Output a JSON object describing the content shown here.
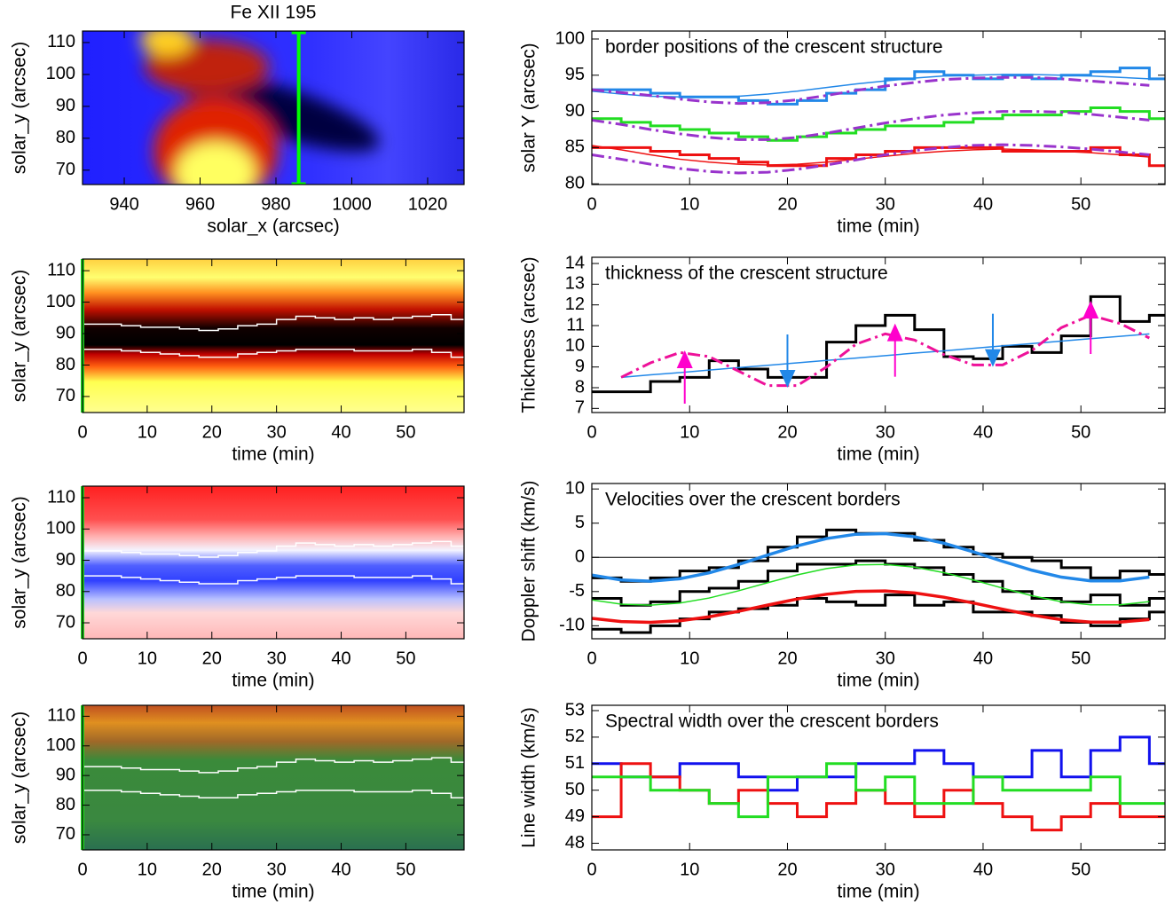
{
  "chart_data": [
    {
      "type": "heatmap",
      "title": "Fe XII 195",
      "xlabel": "solar_x (arcsec)",
      "ylabel": "solar_y (arcsec)",
      "xlim": [
        929,
        1029.6
      ],
      "ylim": [
        65.5,
        113.6
      ],
      "xticks": [
        940,
        960,
        980,
        1000,
        1020
      ],
      "yticks": [
        70,
        80,
        90,
        100,
        110
      ],
      "marker_x": 986,
      "marker_color": "#00ff00"
    },
    {
      "type": "line",
      "title": "border positions of the crescent structure",
      "xlabel": "time (min)",
      "ylabel": "solar Y (arcsec)",
      "xlim": [
        0,
        58.6
      ],
      "ylim": [
        79.9,
        101.1
      ],
      "xticks": [
        0,
        10,
        20,
        30,
        40,
        50
      ],
      "yticks": [
        80,
        85,
        90,
        95,
        100
      ],
      "x": [
        0,
        3,
        6,
        9,
        12,
        15,
        18,
        21,
        24,
        27,
        30,
        33,
        36,
        39,
        42,
        45,
        48,
        51,
        54,
        57
      ],
      "series": [
        {
          "color": "#2288e8",
          "style": "step",
          "values": [
            93,
            93,
            92.5,
            92,
            92,
            91.5,
            91,
            91.5,
            92.5,
            93,
            94.5,
            95.5,
            95,
            94.5,
            95,
            94.5,
            95,
            95.5,
            96,
            94.5
          ]
        },
        {
          "color": "#2288e8",
          "style": "line",
          "values": [
            92.8,
            92.4,
            92.1,
            92,
            92,
            92.1,
            92.4,
            92.8,
            93.3,
            93.8,
            94.2,
            94.6,
            94.9,
            95,
            95.1,
            95.1,
            95,
            94.9,
            94.7,
            94.5
          ]
        },
        {
          "color": "#9933cc",
          "style": "dashdot",
          "values": [
            93,
            92.6,
            92.2,
            91.7,
            91.3,
            91.1,
            91.2,
            91.6,
            92.2,
            92.9,
            93.5,
            94,
            94.4,
            94.6,
            94.7,
            94.7,
            94.5,
            94.2,
            93.9,
            93.6
          ]
        },
        {
          "color": "#22dd22",
          "style": "step",
          "values": [
            89,
            88.5,
            88,
            87.5,
            87,
            86.5,
            86,
            86.5,
            87,
            87.5,
            88,
            88,
            88.5,
            89,
            89.5,
            89.5,
            90,
            90.5,
            90,
            89
          ]
        },
        {
          "color": "#9933cc",
          "style": "dashdot",
          "values": [
            88.8,
            88.2,
            87.5,
            86.9,
            86.4,
            86.1,
            86.1,
            86.4,
            87,
            87.7,
            88.4,
            89,
            89.5,
            89.8,
            90,
            90,
            89.9,
            89.6,
            89.2,
            88.8
          ]
        },
        {
          "color": "#ee1111",
          "style": "step",
          "values": [
            85,
            85,
            84.5,
            84,
            83.5,
            83,
            82.5,
            82.5,
            83.5,
            84,
            84.5,
            85,
            85,
            85,
            84.5,
            84.5,
            84.5,
            85,
            84,
            82.5
          ]
        },
        {
          "color": "#ee1111",
          "style": "line",
          "values": [
            85.3,
            84.7,
            84,
            83.4,
            83,
            82.7,
            82.6,
            82.7,
            83,
            83.4,
            83.8,
            84.2,
            84.5,
            84.7,
            84.8,
            84.7,
            84.5,
            84.3,
            84,
            83.7
          ]
        },
        {
          "color": "#9933cc",
          "style": "dashdot",
          "values": [
            84,
            83.4,
            82.7,
            82.1,
            81.7,
            81.5,
            81.6,
            82,
            82.6,
            83.3,
            84,
            84.6,
            85,
            85.3,
            85.4,
            85.3,
            85.1,
            84.8,
            84.4,
            84
          ]
        }
      ]
    },
    {
      "type": "heatmap",
      "xlabel": "time (min)",
      "ylabel": "solar_y (arcsec)",
      "xlim": [
        0,
        59
      ],
      "ylim": [
        64.9,
        113.7
      ],
      "xticks": [
        0,
        10,
        20,
        30,
        40,
        50
      ],
      "yticks": [
        70,
        80,
        90,
        100,
        110
      ]
    },
    {
      "type": "line",
      "title": "thickness of the crescent structure",
      "xlabel": "time (min)",
      "ylabel": "Thickness (arcsec)",
      "xlim": [
        0,
        58.6
      ],
      "ylim": [
        6.8,
        14.3
      ],
      "xticks": [
        0,
        10,
        20,
        30,
        40,
        50
      ],
      "yticks": [
        7,
        8,
        9,
        10,
        11,
        12,
        13,
        14
      ],
      "x": [
        0,
        3,
        6,
        9,
        12,
        15,
        18,
        21,
        24,
        27,
        30,
        33,
        36,
        39,
        42,
        45,
        48,
        51,
        54,
        57
      ],
      "series": [
        {
          "color": "#000000",
          "style": "step",
          "values": [
            7.8,
            7.8,
            8.3,
            8.5,
            9.3,
            8.9,
            8.5,
            8.5,
            10.2,
            11,
            11.5,
            10.8,
            9.5,
            9.4,
            10,
            9.7,
            10.5,
            12.4,
            11.2,
            11.5
          ]
        },
        {
          "color": "#2288e8",
          "style": "line",
          "values": [
            null,
            8.5,
            8.62,
            8.73,
            8.85,
            8.97,
            9.08,
            9.2,
            9.32,
            9.43,
            9.55,
            9.67,
            9.78,
            9.9,
            10.02,
            10.13,
            10.25,
            10.37,
            10.48,
            10.6
          ]
        },
        {
          "color": "#ee1199",
          "style": "dashdot",
          "values": [
            null,
            8.5,
            9.2,
            9.7,
            9.5,
            8.8,
            8.1,
            8.1,
            9,
            10.1,
            10.6,
            10.3,
            9.6,
            9.1,
            9.1,
            9.8,
            10.9,
            11.5,
            11.1,
            10.4
          ]
        }
      ],
      "arrows": [
        {
          "x": 9.5,
          "y": 9.8,
          "color": "#ff00cc",
          "direction": "down"
        },
        {
          "x": 31,
          "y": 11.1,
          "color": "#ff00cc",
          "direction": "down"
        },
        {
          "x": 51,
          "y": 12.2,
          "color": "#ff00cc",
          "direction": "down"
        },
        {
          "x": 20,
          "y": 8,
          "color": "#2288e8",
          "direction": "up"
        },
        {
          "x": 41,
          "y": 9,
          "color": "#2288e8",
          "direction": "up"
        }
      ]
    },
    {
      "type": "heatmap",
      "xlabel": "time (min)",
      "ylabel": "solar_y (arcsec)",
      "xlim": [
        0,
        59
      ],
      "ylim": [
        64.9,
        113.7
      ],
      "xticks": [
        0,
        10,
        20,
        30,
        40,
        50
      ],
      "yticks": [
        70,
        80,
        90,
        100,
        110
      ],
      "tick_color": "#0000ff"
    },
    {
      "type": "line",
      "title": "Velocities over the crescent borders",
      "xlabel": "time (min)",
      "ylabel": "Doppler shift (km/s)",
      "xlim": [
        0,
        58.6
      ],
      "ylim": [
        -11.9,
        10.8
      ],
      "xticks": [
        0,
        10,
        20,
        30,
        40,
        50
      ],
      "yticks": [
        -10,
        -5,
        0,
        5,
        10
      ],
      "hlines": [
        0
      ],
      "x": [
        0,
        3,
        6,
        9,
        12,
        15,
        18,
        21,
        24,
        27,
        30,
        33,
        36,
        39,
        42,
        45,
        48,
        51,
        54,
        57
      ],
      "series": [
        {
          "color": "#000000",
          "style": "step",
          "values": [
            -3,
            -3.5,
            -3,
            -2,
            -1.5,
            -0.5,
            1.5,
            3,
            4,
            3.5,
            3.5,
            2.5,
            1.5,
            0.5,
            0,
            -0.5,
            -1.5,
            -3,
            -2,
            -2.5
          ]
        },
        {
          "color": "#000000",
          "style": "step",
          "values": [
            -6,
            -7,
            -6.5,
            -5,
            -4.5,
            -3.5,
            -2,
            -1,
            -1,
            -0.5,
            -1,
            -1.5,
            -2.5,
            -3.5,
            -5,
            -6,
            -6.5,
            -5.5,
            -7,
            -6
          ]
        },
        {
          "color": "#000000",
          "style": "step",
          "values": [
            -10.5,
            -11,
            -10,
            -9,
            -8,
            -7.5,
            -7,
            -6,
            -6.5,
            -7,
            -5.5,
            -7,
            -6.5,
            -8,
            -8,
            -8.5,
            -9.5,
            -10,
            -9,
            -8
          ]
        },
        {
          "color": "#2288e8",
          "style": "thick",
          "values": [
            -2.59,
            -3.31,
            -3.49,
            -3.13,
            -2.26,
            -1.04,
            0.35,
            1.68,
            2.75,
            3.38,
            3.47,
            3.01,
            2.07,
            0.81,
            -0.58,
            -1.88,
            -2.89,
            -3.43,
            -3.43,
            -2.88
          ]
        },
        {
          "color": "#22dd22",
          "style": "line",
          "values": [
            -6.22,
            -6.84,
            -6.99,
            -6.68,
            -5.94,
            -4.89,
            -3.7,
            -2.56,
            -1.64,
            -1.1,
            -1.03,
            -1.42,
            -2.23,
            -3.31,
            -4.5,
            -5.61,
            -6.48,
            -6.94,
            -6.94,
            -6.47
          ]
        },
        {
          "color": "#ee1111",
          "style": "thick",
          "values": [
            -8.91,
            -9.38,
            -9.5,
            -9.27,
            -8.69,
            -7.89,
            -6.97,
            -6.09,
            -5.39,
            -4.97,
            -4.91,
            -5.21,
            -5.83,
            -6.67,
            -7.58,
            -8.44,
            -9.11,
            -9.46,
            -9.46,
            -9.1
          ]
        }
      ]
    },
    {
      "type": "heatmap",
      "xlabel": "time (min)",
      "ylabel": "solar_y (arcsec)",
      "xlim": [
        0,
        59
      ],
      "ylim": [
        64.9,
        113.7
      ],
      "xticks": [
        0,
        10,
        20,
        30,
        40,
        50
      ],
      "yticks": [
        70,
        80,
        90,
        100,
        110
      ]
    },
    {
      "type": "line",
      "title": "Spectral width over the crescent borders",
      "xlabel": "time (min)",
      "ylabel": "Line width (km/s)",
      "xlim": [
        0,
        58.6
      ],
      "ylim": [
        47.75,
        53.2
      ],
      "xticks": [
        0,
        10,
        20,
        30,
        40,
        50
      ],
      "yticks": [
        48,
        49,
        50,
        51,
        52,
        53
      ],
      "x": [
        0,
        3,
        6,
        9,
        12,
        15,
        18,
        21,
        24,
        27,
        30,
        33,
        36,
        39,
        42,
        45,
        48,
        51,
        54,
        57
      ],
      "series": [
        {
          "color": "#1111ee",
          "style": "step",
          "values": [
            51,
            50.5,
            50.5,
            51,
            51,
            50.5,
            50,
            50.5,
            50.5,
            51,
            51,
            51.5,
            51,
            50.5,
            50.5,
            51.5,
            50.5,
            51.5,
            52,
            51
          ]
        },
        {
          "color": "#ee1111",
          "style": "step",
          "values": [
            49,
            51,
            50.5,
            50,
            49.5,
            50,
            49.5,
            49,
            49.5,
            50,
            49.5,
            49,
            50,
            49.5,
            49,
            48.5,
            49,
            49.5,
            49,
            49
          ]
        },
        {
          "color": "#22dd22",
          "style": "step",
          "values": [
            50.5,
            50.5,
            50,
            50,
            49.5,
            49,
            50.5,
            50.5,
            51,
            50,
            50.5,
            49.5,
            49.5,
            50.5,
            50,
            50,
            50,
            50.5,
            49.5,
            49.5
          ]
        }
      ]
    }
  ]
}
